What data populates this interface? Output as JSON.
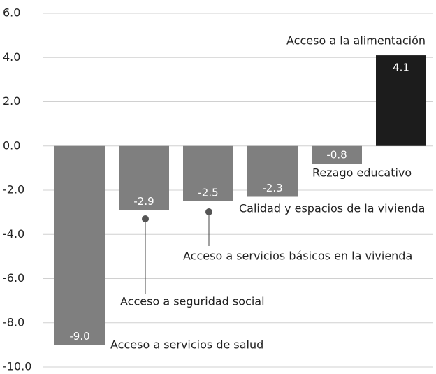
{
  "chart_data": {
    "type": "bar",
    "categories": [
      "Acceso a servicios de salud",
      "Acceso a seguridad social",
      "Acceso a servicios básicos en la vivienda",
      "Calidad y espacios de la vivienda",
      "Rezago educativo",
      "Acceso a la alimentación"
    ],
    "values": [
      -9.0,
      -2.9,
      -2.5,
      -2.3,
      -0.8,
      4.1
    ],
    "value_labels": [
      "-9.0",
      "-2.9",
      "-2.5",
      "-2.3",
      "-0.8",
      "4.1"
    ],
    "colors": [
      "#7f7f7f",
      "#7f7f7f",
      "#7f7f7f",
      "#7f7f7f",
      "#7f7f7f",
      "#1c1c1c"
    ],
    "ylim": [
      -10,
      6
    ],
    "yticks": [
      {
        "value": 6,
        "label": "6.0"
      },
      {
        "value": 4,
        "label": "4.0"
      },
      {
        "value": 2,
        "label": "2.0"
      },
      {
        "value": 0,
        "label": "0.0"
      },
      {
        "value": -2,
        "label": "-2.0"
      },
      {
        "value": -4,
        "label": "-4.0"
      },
      {
        "value": -6,
        "label": "-6.0"
      },
      {
        "value": -8,
        "label": "-8.0"
      },
      {
        "value": -10,
        "label": "-10.0"
      }
    ],
    "grid": true
  }
}
